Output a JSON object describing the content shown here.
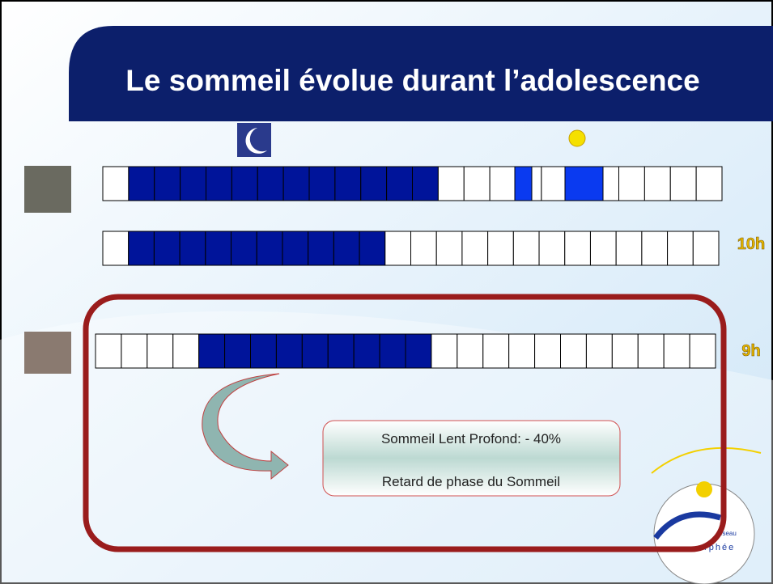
{
  "title": "Le sommeil évolue durant l’adolescence",
  "row_labels": {
    "second": "10h",
    "third": "9h"
  },
  "callout": {
    "line1": "Sommeil Lent Profond: - 40%",
    "line2": "Retard de phase du Sommeil"
  },
  "logo": {
    "small": "eseau",
    "name": "orphée"
  }
}
